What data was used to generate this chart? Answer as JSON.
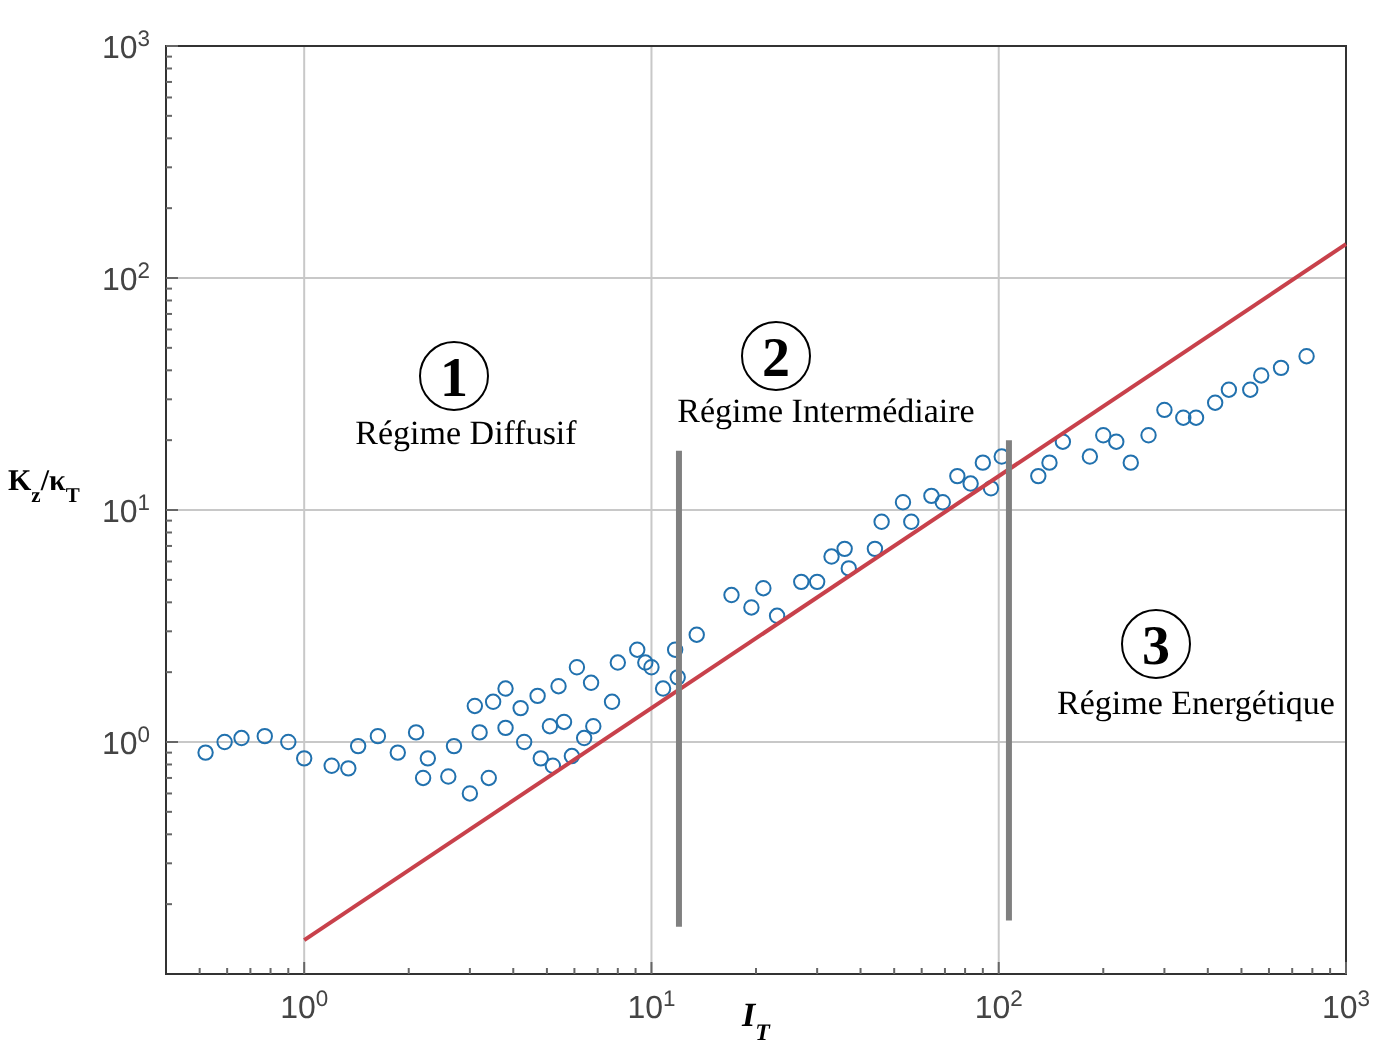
{
  "chart_data": {
    "type": "scatter",
    "xlabel": "I$_{T}$",
    "ylabel": "K$_{z}$/κ$_{T}$",
    "log": "xy",
    "grid": true,
    "xlim": [
      0.4,
      1000
    ],
    "ylim": [
      0.1,
      1000
    ],
    "xticks": [
      {
        "value": 0.5,
        "label": null
      },
      {
        "value": 0.6,
        "label": null
      },
      {
        "value": 0.7,
        "label": null
      },
      {
        "value": 0.8,
        "label": null
      },
      {
        "value": 0.9,
        "label": null
      },
      {
        "value": 1,
        "label": "10$^{0}$"
      },
      {
        "value": 2,
        "label": null
      },
      {
        "value": 3,
        "label": null
      },
      {
        "value": 4,
        "label": null
      },
      {
        "value": 5,
        "label": null
      },
      {
        "value": 6,
        "label": null
      },
      {
        "value": 7,
        "label": null
      },
      {
        "value": 8,
        "label": null
      },
      {
        "value": 9,
        "label": null
      },
      {
        "value": 10,
        "label": "10$^{1}$"
      },
      {
        "value": 20,
        "label": null
      },
      {
        "value": 30,
        "label": null
      },
      {
        "value": 40,
        "label": null
      },
      {
        "value": 50,
        "label": null
      },
      {
        "value": 60,
        "label": null
      },
      {
        "value": 70,
        "label": null
      },
      {
        "value": 80,
        "label": null
      },
      {
        "value": 90,
        "label": null
      },
      {
        "value": 100,
        "label": "10$^{2}$"
      },
      {
        "value": 200,
        "label": null
      },
      {
        "value": 300,
        "label": null
      },
      {
        "value": 400,
        "label": null
      },
      {
        "value": 500,
        "label": null
      },
      {
        "value": 600,
        "label": null
      },
      {
        "value": 700,
        "label": null
      },
      {
        "value": 800,
        "label": null
      },
      {
        "value": 900,
        "label": null
      },
      {
        "value": 1000,
        "label": "10$^{3}$"
      }
    ],
    "yticks": [
      {
        "value": 0.2,
        "label": null
      },
      {
        "value": 0.3,
        "label": null
      },
      {
        "value": 0.4,
        "label": null
      },
      {
        "value": 0.5,
        "label": null
      },
      {
        "value": 0.6,
        "label": null
      },
      {
        "value": 0.7,
        "label": null
      },
      {
        "value": 0.8,
        "label": null
      },
      {
        "value": 0.9,
        "label": null
      },
      {
        "value": 1,
        "label": "10$^{0}$"
      },
      {
        "value": 2,
        "label": null
      },
      {
        "value": 3,
        "label": null
      },
      {
        "value": 4,
        "label": null
      },
      {
        "value": 5,
        "label": null
      },
      {
        "value": 6,
        "label": null
      },
      {
        "value": 7,
        "label": null
      },
      {
        "value": 8,
        "label": null
      },
      {
        "value": 9,
        "label": null
      },
      {
        "value": 10,
        "label": "10$^{1}$"
      },
      {
        "value": 20,
        "label": null
      },
      {
        "value": 30,
        "label": null
      },
      {
        "value": 40,
        "label": null
      },
      {
        "value": 50,
        "label": null
      },
      {
        "value": 60,
        "label": null
      },
      {
        "value": 70,
        "label": null
      },
      {
        "value": 80,
        "label": null
      },
      {
        "value": 90,
        "label": null
      },
      {
        "value": 100,
        "label": "10$^{2}$"
      },
      {
        "value": 200,
        "label": null
      },
      {
        "value": 300,
        "label": null
      },
      {
        "value": 400,
        "label": null
      },
      {
        "value": 500,
        "label": null
      },
      {
        "value": 600,
        "label": null
      },
      {
        "value": 700,
        "label": null
      },
      {
        "value": 800,
        "label": null
      },
      {
        "value": 900,
        "label": null
      },
      {
        "value": 1000,
        "label": "10$^{3}$"
      }
    ],
    "series": [
      {
        "type": "scatter",
        "marker": "circle",
        "color": "#2171ae",
        "x": [
          0.52,
          0.59,
          0.66,
          0.77,
          0.9,
          1.0,
          1.2,
          1.34,
          1.43,
          1.63,
          1.86,
          2.1,
          2.27,
          2.2,
          2.6,
          3.0,
          3.4,
          2.7,
          3.1,
          3.5,
          3.8,
          4.2,
          4.7,
          3.2,
          3.8,
          4.3,
          4.8,
          5.2,
          5.9,
          6.4,
          6.8,
          5.4,
          6.1,
          6.7,
          7.7,
          8.0,
          9.1,
          10,
          10.8,
          5.1,
          5.6,
          9.6,
          11.7,
          11.9,
          13.5,
          17,
          19.4,
          21,
          23,
          27,
          30,
          33,
          36,
          37,
          44,
          46,
          53,
          56,
          64,
          69,
          76,
          83,
          90,
          95,
          102,
          130,
          140,
          153,
          183,
          200,
          218,
          240,
          270,
          300,
          340,
          370,
          420,
          460,
          530,
          570,
          650,
          770
        ],
        "values": [
          0.9,
          1.0,
          1.04,
          1.06,
          1.0,
          0.85,
          0.79,
          0.77,
          0.96,
          1.06,
          0.9,
          1.1,
          0.85,
          0.7,
          0.71,
          0.6,
          0.7,
          0.96,
          1.43,
          1.49,
          1.7,
          1.4,
          1.58,
          1.1,
          1.15,
          1.0,
          0.85,
          0.79,
          0.87,
          1.04,
          1.17,
          1.74,
          2.1,
          1.8,
          1.49,
          2.2,
          2.5,
          2.1,
          1.7,
          1.17,
          1.22,
          2.2,
          2.5,
          1.9,
          2.9,
          4.3,
          3.8,
          4.6,
          3.5,
          4.9,
          4.9,
          6.3,
          6.8,
          5.6,
          6.8,
          8.9,
          10.8,
          8.9,
          11.5,
          10.8,
          14,
          13,
          16,
          12.4,
          17,
          14,
          16,
          19.7,
          17,
          21,
          19.7,
          16,
          21,
          27,
          25,
          25,
          29,
          33,
          33,
          38,
          41,
          46
        ]
      },
      {
        "type": "line",
        "marker": "none",
        "color": "#c8414b",
        "x": [
          1,
          1000
        ],
        "values": [
          0.14,
          140
        ]
      },
      {
        "type": "line",
        "marker": "none",
        "color": "#808080",
        "x": [
          12,
          12
        ],
        "values": [
          0.16,
          18
        ]
      },
      {
        "type": "line",
        "marker": "none",
        "color": "#808080",
        "x": [
          107,
          107
        ],
        "values": [
          0.17,
          20
        ]
      }
    ],
    "annotations": [
      "1",
      "Régime Diffusif",
      "2",
      "Régime Intermédiaire",
      "3",
      "Régime Energétique"
    ]
  }
}
